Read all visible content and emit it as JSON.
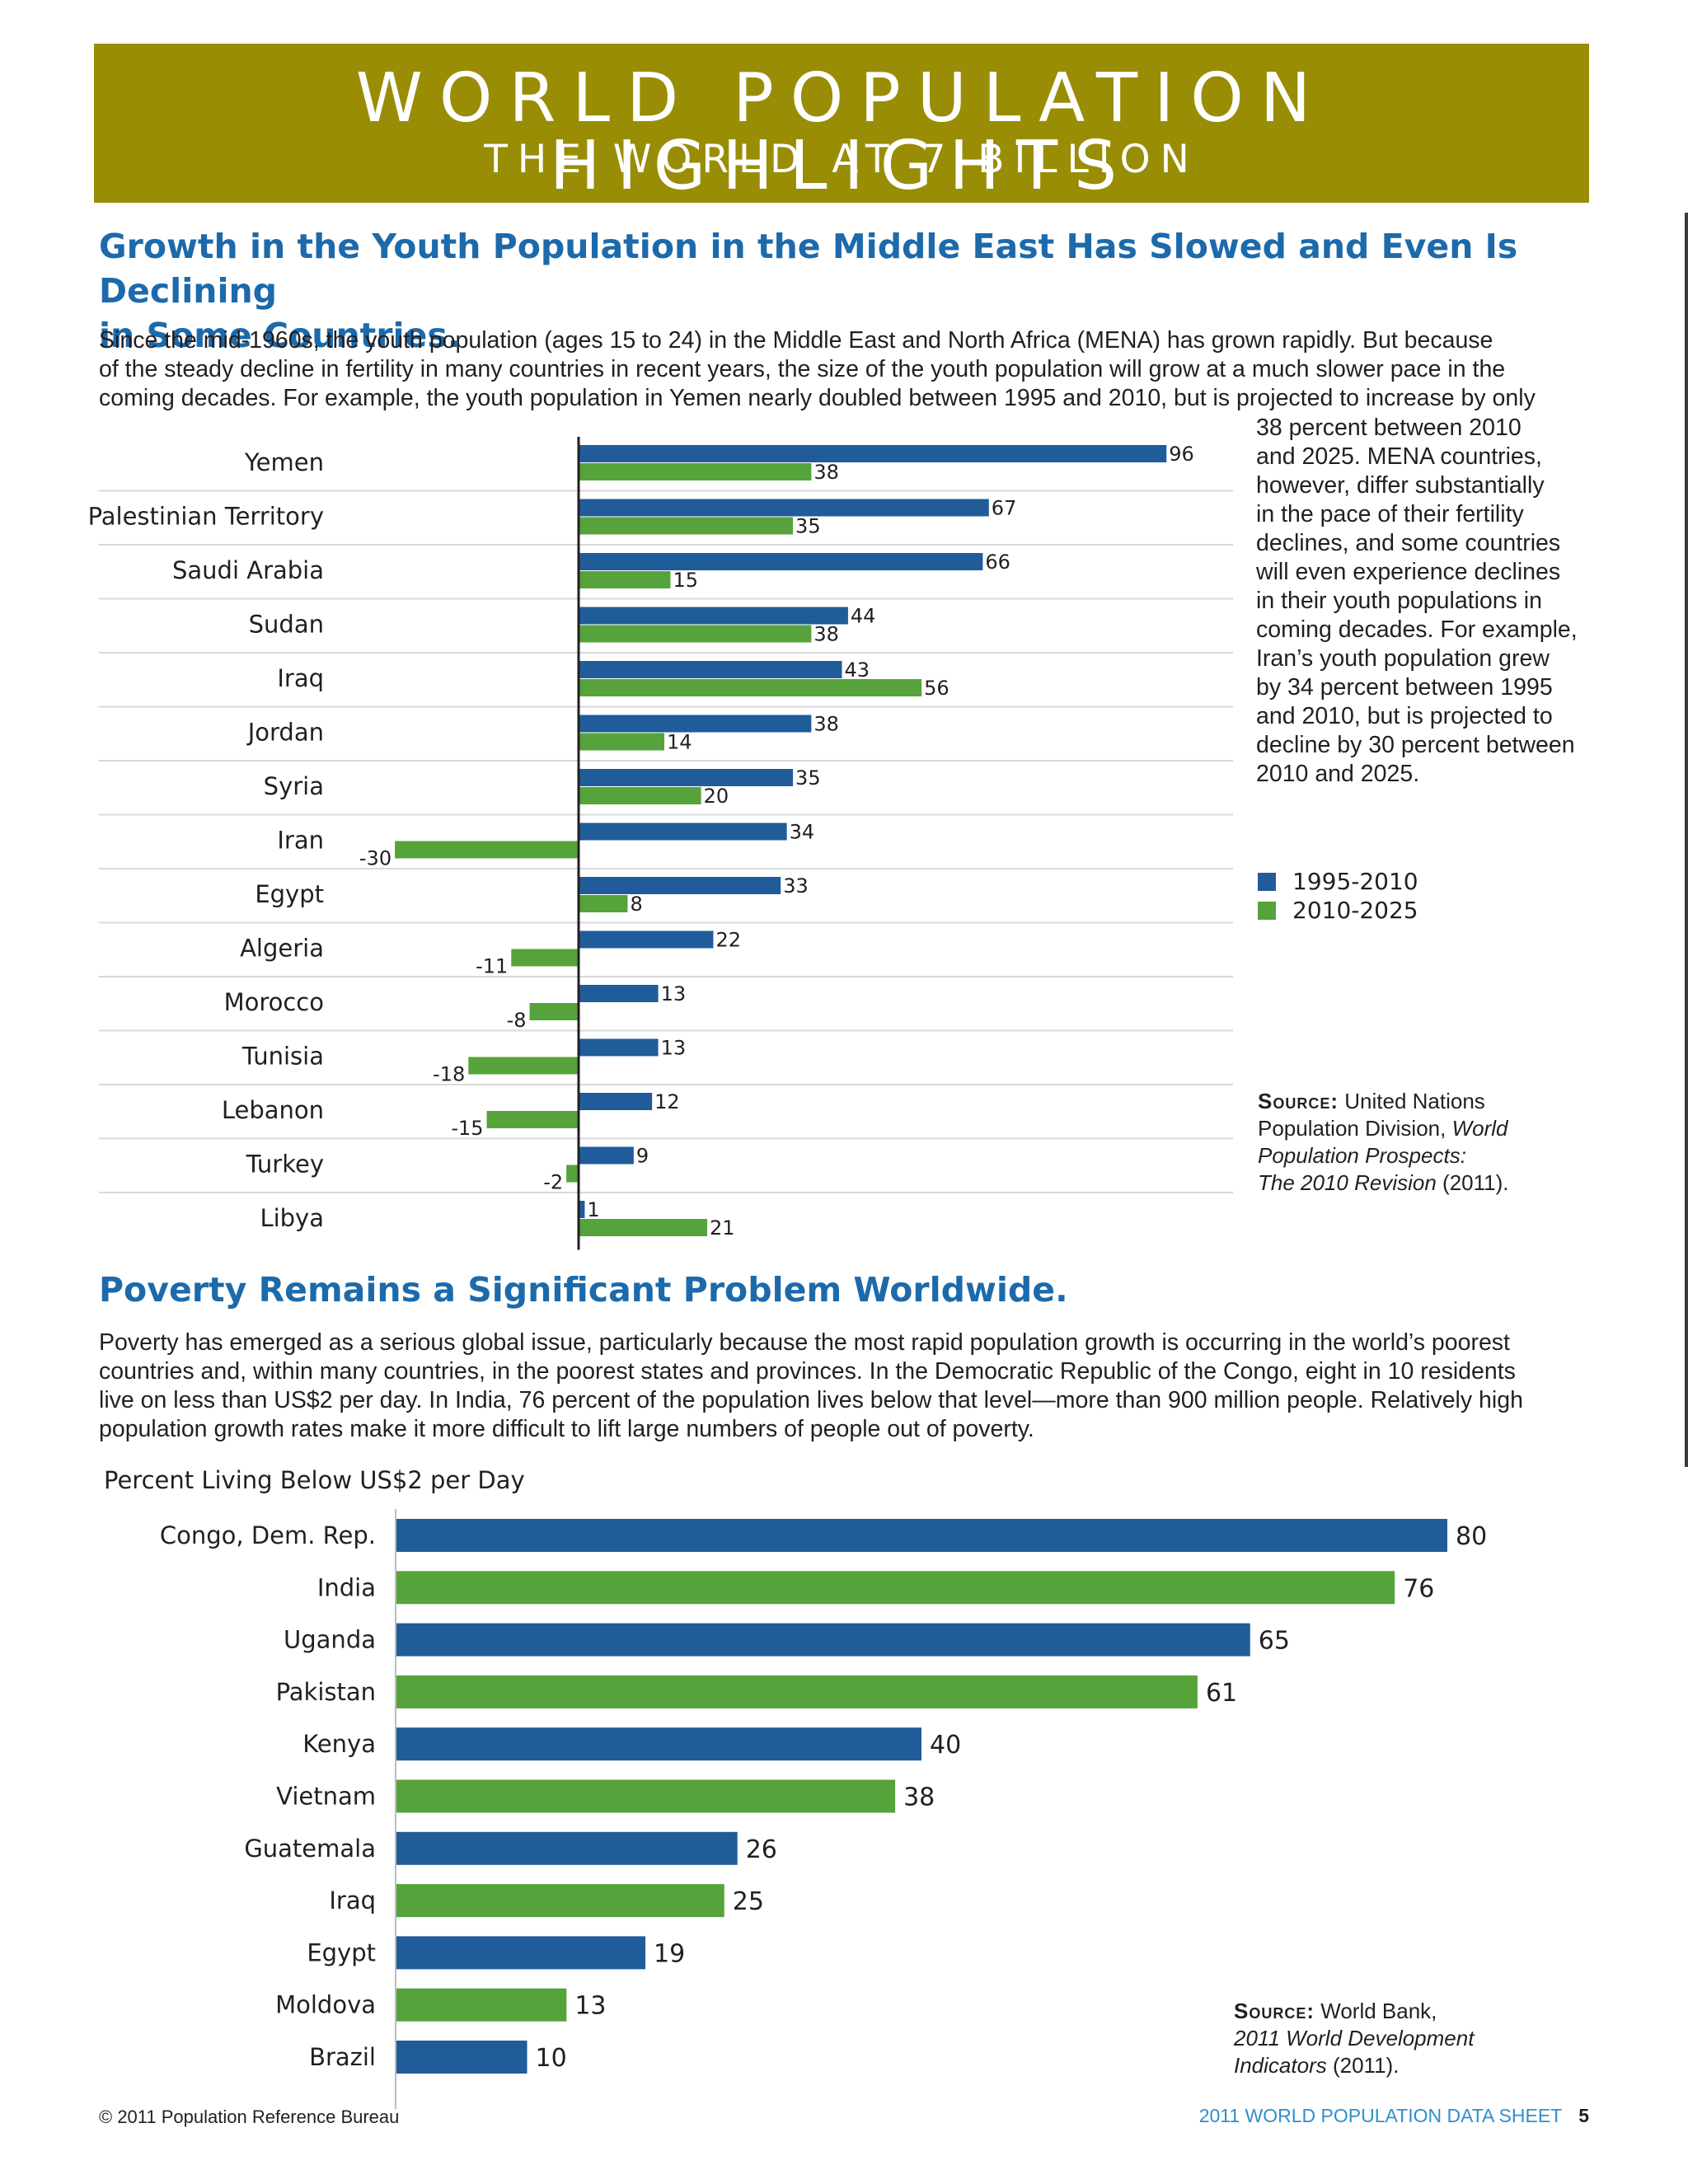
{
  "banner": {
    "title": "WORLD POPULATION HIGHLIGHTS",
    "subtitle": "THE WORLD AT 7 BILLION"
  },
  "section1": {
    "heading_line1": "Growth in the Youth Population in the Middle East Has Slowed and Even Is Declining",
    "heading_line2": "in Some Countries.",
    "para_lines": [
      "Since the mid-1960s, the youth population (ages 15 to 24) in the Middle East and North Africa (MENA) has grown rapidly. But because",
      "of the steady decline in fertility in many countries in recent years, the size of the youth population will grow at a much slower pace in the",
      "coming decades. For example, the youth population in Yemen nearly doubled between 1995 and 2010, but is projected to increase by only"
    ],
    "sidebar_lines": [
      "38 percent between 2010",
      "and 2025. MENA countries,",
      "however, differ substantially",
      "in the pace of their fertility",
      "declines, and some countries",
      "will even experience declines",
      "in their youth populations in",
      "coming decades. For example,",
      "Iran’s youth population grew",
      "by 34 percent between 1995",
      "and 2010, but is projected to",
      "decline by 30 percent between",
      "2010 and 2025."
    ],
    "source_label": "Source:",
    "source_text_1": "United Nations",
    "source_text_2": "Population Division,",
    "source_italic_1": "World",
    "source_italic_2": "Population Prospects:",
    "source_italic_3": "The 2010 Revision",
    "source_year": "(2011)."
  },
  "section2": {
    "heading": "Poverty Remains a Significant Problem Worldwide.",
    "para_lines": [
      "Poverty has emerged as a serious global issue, particularly because the most rapid population growth is occurring in the world’s poorest",
      "countries and, within many countries, in the poorest states and provinces. In the Democratic Republic of the Congo, eight in 10 residents",
      "live on less than US$2 per day. In India, 76 percent of the population lives below that level—more than 900 million people. Relatively high",
      "population growth rates make it more difficult to lift large numbers of people out of poverty."
    ],
    "source_label": "Source:",
    "source_text_1": "World Bank,",
    "source_italic_1": "2011 World Development",
    "source_italic_2": "Indicators",
    "source_year": "(2011)."
  },
  "footer": {
    "copyright": "© 2011 Population Reference Bureau",
    "publication": "2011 WORLD POPULATION DATA SHEET",
    "page": "5"
  },
  "colors": {
    "banner": "#998d06",
    "heading": "#1c6aab",
    "blue": "#1f5c99",
    "green": "#55a33a"
  },
  "chart_data": [
    {
      "type": "bar",
      "orientation": "horizontal",
      "categories": [
        "Yemen",
        "Palestinian Territory",
        "Saudi Arabia",
        "Sudan",
        "Iraq",
        "Jordan",
        "Syria",
        "Iran",
        "Egypt",
        "Algeria",
        "Morocco",
        "Tunisia",
        "Lebanon",
        "Turkey",
        "Libya"
      ],
      "series": [
        {
          "name": "1995-2010",
          "color": "#1f5c99",
          "values": [
            96,
            67,
            66,
            44,
            43,
            38,
            35,
            34,
            33,
            22,
            13,
            13,
            12,
            9,
            1
          ]
        },
        {
          "name": "2010-2025",
          "color": "#55a33a",
          "values": [
            38,
            35,
            15,
            38,
            56,
            14,
            20,
            -30,
            8,
            -11,
            -8,
            -18,
            -15,
            -2,
            21
          ]
        }
      ],
      "legend": "right",
      "grid": "row separators"
    },
    {
      "type": "bar",
      "orientation": "horizontal",
      "title": "Percent Living Below US$2 per Day",
      "categories": [
        "Congo, Dem. Rep.",
        "India",
        "Uganda",
        "Pakistan",
        "Kenya",
        "Vietnam",
        "Guatemala",
        "Iraq",
        "Egypt",
        "Moldova",
        "Brazil"
      ],
      "values": [
        80,
        76,
        65,
        61,
        40,
        38,
        26,
        25,
        19,
        13,
        10
      ],
      "colors": [
        "#1f5c99",
        "#55a33a",
        "#1f5c99",
        "#55a33a",
        "#1f5c99",
        "#55a33a",
        "#1f5c99",
        "#55a33a",
        "#1f5c99",
        "#55a33a",
        "#1f5c99"
      ]
    }
  ]
}
